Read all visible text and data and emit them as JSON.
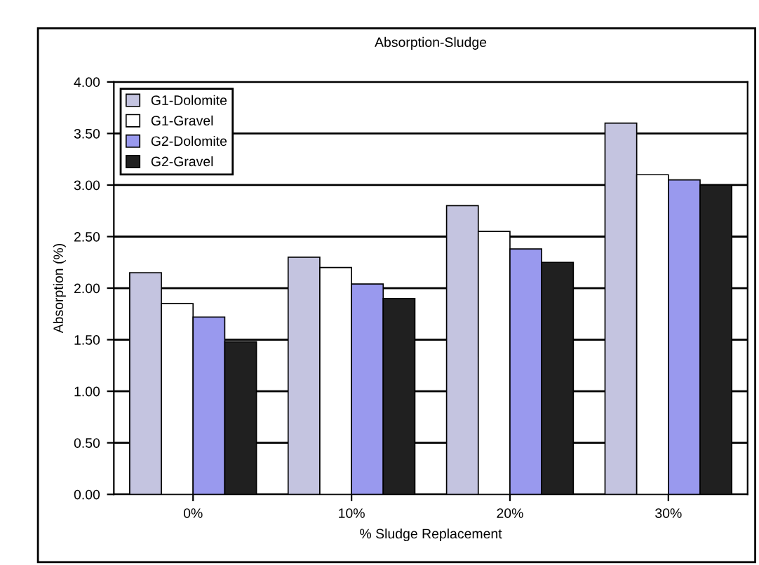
{
  "chart_data": {
    "type": "bar",
    "title": "Absorption-Sludge",
    "xlabel": "% Sludge Replacement",
    "ylabel": "Absorption (%)",
    "categories": [
      "0%",
      "10%",
      "20%",
      "30%"
    ],
    "series": [
      {
        "name": "G1-Dolomite",
        "color": "#c4c4e0",
        "values": [
          2.15,
          2.3,
          2.8,
          3.6
        ]
      },
      {
        "name": "G1-Gravel",
        "color": "#ffffff",
        "values": [
          1.85,
          2.2,
          2.55,
          3.1
        ]
      },
      {
        "name": "G2-Dolomite",
        "color": "#9999ee",
        "values": [
          1.72,
          2.04,
          2.38,
          3.05
        ]
      },
      {
        "name": "G2-Gravel",
        "color": "#202020",
        "values": [
          1.48,
          1.9,
          2.25,
          3.0
        ]
      }
    ],
    "ylim": [
      0,
      4
    ],
    "yticks": [
      {
        "value": 0,
        "label": "0.00"
      },
      {
        "value": 0.5,
        "label": "0.50"
      },
      {
        "value": 1,
        "label": "1.00"
      },
      {
        "value": 1.5,
        "label": "1.50"
      },
      {
        "value": 2,
        "label": "2.00"
      },
      {
        "value": 2.5,
        "label": "2.50"
      },
      {
        "value": 3,
        "label": "3.00"
      },
      {
        "value": 3.5,
        "label": "3.50"
      },
      {
        "value": 4,
        "label": "4.00"
      }
    ],
    "grid": "y",
    "legend": "top left"
  }
}
